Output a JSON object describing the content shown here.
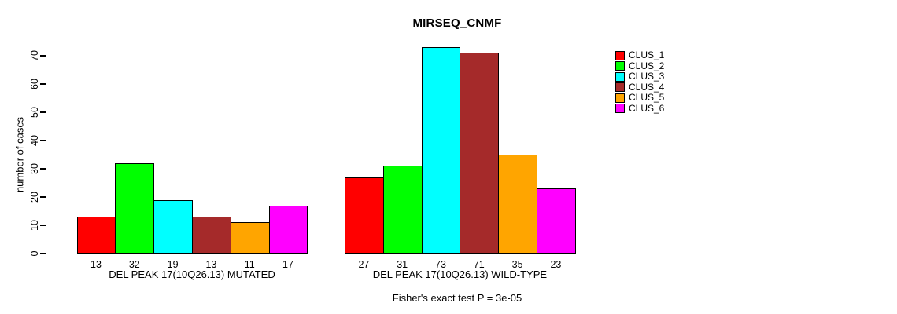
{
  "window": {
    "background": "#FFFFFF"
  },
  "chart_data": {
    "type": "bar",
    "title": "MIRSEQ_CNMF",
    "ylabel": "number of cases",
    "xlabel": "",
    "ylim": [
      0,
      73
    ],
    "yticks": [
      0,
      10,
      20,
      30,
      40,
      50,
      60,
      70
    ],
    "grid": false,
    "legend_position": "right",
    "series_names": [
      "CLUS_1",
      "CLUS_2",
      "CLUS_3",
      "CLUS_4",
      "CLUS_5",
      "CLUS_6"
    ],
    "series_colors": [
      "#FF0000",
      "#00FF00",
      "#00FFFF",
      "#A52A2A",
      "#FFA500",
      "#FF00FF"
    ],
    "groups": [
      {
        "label": "DEL PEAK 17(10Q26.13) MUTATED",
        "values": [
          13,
          32,
          19,
          13,
          11,
          17
        ]
      },
      {
        "label": "DEL PEAK 17(10Q26.13) WILD-TYPE",
        "values": [
          27,
          31,
          73,
          71,
          35,
          23
        ]
      }
    ],
    "bar_value_labels": true,
    "annotation": "Fisher's exact test P = 3e-05",
    "axis_color": "#000000",
    "bar_border_color": "#000000"
  }
}
